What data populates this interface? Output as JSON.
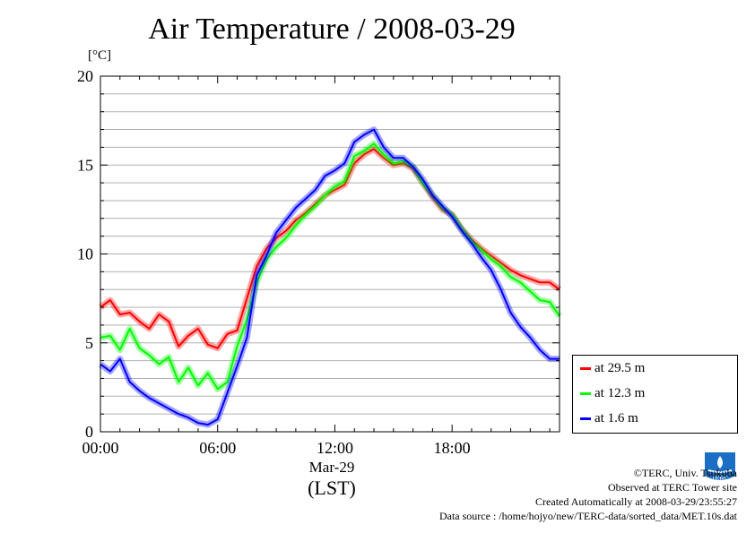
{
  "title": "Air Temperature / 2008-03-29",
  "unit": "[°C]",
  "date_label": "Mar-29",
  "tz_label": "(LST)",
  "credits": {
    "line1": "©TERC, Univ. Tsukuba",
    "line2": "Observed at TERC Tower site",
    "line3": "Created Automatically at 2008-03-29/23:55:27",
    "line4": "Data source : /home/hojyo/new/TERC-data/sorted_data/MET.10s.dat"
  },
  "logo_text": "TERC",
  "chart_data": {
    "type": "line",
    "title": "Air Temperature / 2008-03-29",
    "xlabel": "",
    "ylabel": "[°C]",
    "xlim": [
      0,
      23.5
    ],
    "ylim": [
      0,
      20
    ],
    "grid": true,
    "legend_position": "outside-bottom-right",
    "y_ticks": [
      0,
      5,
      10,
      15,
      20
    ],
    "x_ticks": [
      {
        "hour": 0,
        "label": "00:00"
      },
      {
        "hour": 6,
        "label": "06:00"
      },
      {
        "hour": 12,
        "label": "12:00"
      },
      {
        "hour": 18,
        "label": "18:00"
      }
    ],
    "x": [
      0,
      0.5,
      1,
      1.5,
      2,
      2.5,
      3,
      3.5,
      4,
      4.5,
      5,
      5.5,
      6,
      6.5,
      7,
      7.5,
      8,
      8.5,
      9,
      9.5,
      10,
      10.5,
      11,
      11.5,
      12,
      12.5,
      13,
      13.5,
      14,
      14.5,
      15,
      15.5,
      16,
      16.5,
      17,
      17.5,
      18,
      18.5,
      19,
      19.5,
      20,
      20.5,
      21,
      21.5,
      22,
      22.5,
      23,
      23.5
    ],
    "series": [
      {
        "name": "at 29.5 m",
        "color": "#ff0000",
        "values": [
          7.0,
          7.4,
          6.6,
          6.7,
          6.2,
          5.8,
          6.6,
          6.2,
          4.8,
          5.4,
          5.8,
          4.9,
          4.7,
          5.5,
          5.7,
          7.5,
          9.3,
          10.3,
          10.9,
          11.3,
          11.9,
          12.3,
          12.8,
          13.3,
          13.6,
          13.9,
          15.1,
          15.6,
          15.9,
          15.4,
          15.0,
          15.1,
          14.8,
          14.0,
          13.2,
          12.5,
          12.2,
          11.4,
          10.8,
          10.3,
          9.9,
          9.5,
          9.1,
          8.8,
          8.6,
          8.4,
          8.4,
          8.0
        ]
      },
      {
        "name": "at 12.3 m",
        "color": "#00ff00",
        "values": [
          5.3,
          5.4,
          4.6,
          5.8,
          4.7,
          4.3,
          3.8,
          4.2,
          2.8,
          3.6,
          2.6,
          3.3,
          2.4,
          2.8,
          4.8,
          6.3,
          8.4,
          9.7,
          10.4,
          10.9,
          11.6,
          12.2,
          12.7,
          13.3,
          13.8,
          14.1,
          15.5,
          15.8,
          16.2,
          15.6,
          15.1,
          15.2,
          14.9,
          14.0,
          13.3,
          12.6,
          12.2,
          11.4,
          10.7,
          10.2,
          9.7,
          9.3,
          8.7,
          8.4,
          7.9,
          7.4,
          7.3,
          6.5
        ]
      },
      {
        "name": "at 1.6 m",
        "color": "#0000ff",
        "values": [
          3.8,
          3.4,
          4.1,
          2.8,
          2.3,
          1.9,
          1.6,
          1.3,
          1.0,
          0.8,
          0.5,
          0.4,
          0.7,
          2.2,
          3.7,
          5.3,
          8.8,
          9.9,
          11.2,
          11.9,
          12.6,
          13.1,
          13.6,
          14.4,
          14.7,
          15.1,
          16.3,
          16.7,
          17.0,
          16.0,
          15.4,
          15.4,
          14.9,
          14.2,
          13.3,
          12.7,
          12.1,
          11.3,
          10.6,
          9.8,
          9.1,
          8.0,
          6.7,
          5.9,
          5.3,
          4.6,
          4.1,
          4.1
        ]
      }
    ]
  }
}
